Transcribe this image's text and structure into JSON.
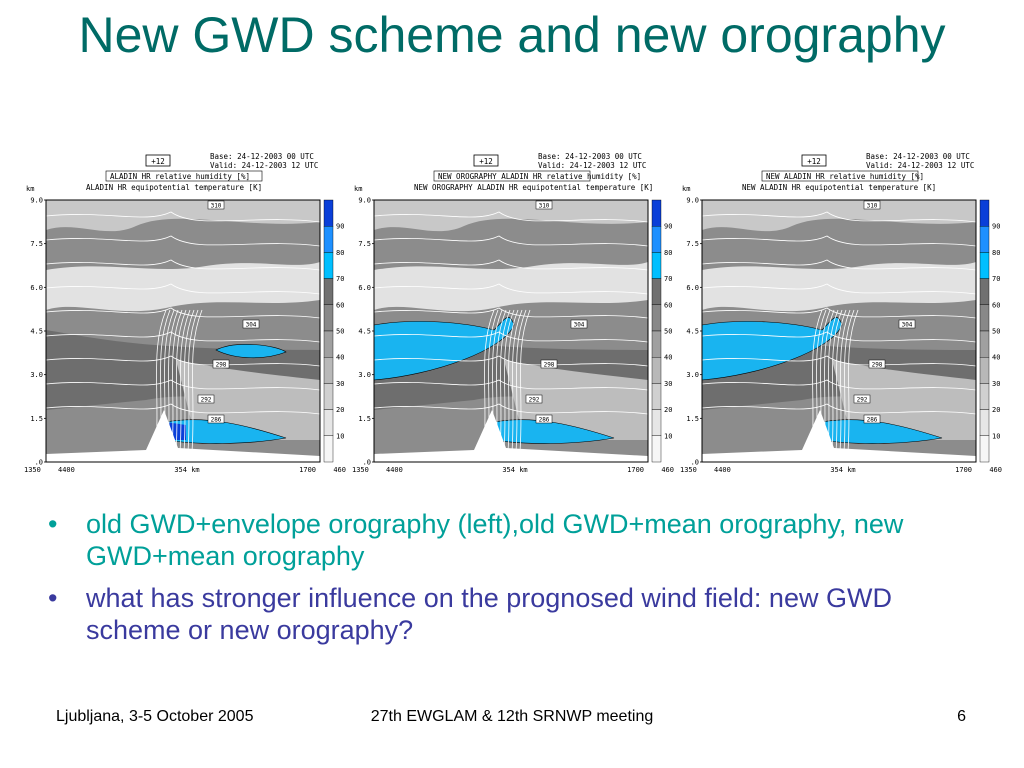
{
  "slide": {
    "title": "New GWD scheme and new orography",
    "bullets": [
      {
        "text": "old GWD+envelope orography (left),old GWD+mean orography, new GWD+mean orography",
        "color": "#00a099"
      },
      {
        "text": "what has stronger influence on the prognosed wind field: new GWD scheme or new orography?",
        "color": "#3a3a9e"
      }
    ],
    "bullet_symbol": "•",
    "footer": {
      "left": "Ljubljana, 3-5 October 2005",
      "center": "27th EWGLAM & 12th SRNWP meeting",
      "right": "6"
    }
  },
  "panels": [
    {
      "forecast": "+12",
      "base": "Base: 24-12-2003  00 UTC",
      "valid": "Valid: 24-12-2003  12 UTC",
      "line1": "ALADIN HR relative humidity [%]",
      "line2": "ALADIN HR equipotential temperature [K]",
      "contour_labels": [
        "310",
        "304",
        "298",
        "292",
        "286"
      ]
    },
    {
      "forecast": "+12",
      "base": "Base: 24-12-2003  00 UTC",
      "valid": "Valid: 24-12-2003  12 UTC",
      "line1": "NEW OROGRAPHY ALADIN HR relative humidity [%]",
      "line2": "NEW OROGRAPHY ALADIN HR equipotential temperature [K]",
      "contour_labels": [
        "310",
        "304",
        "298",
        "292",
        "286"
      ]
    },
    {
      "forecast": "+12",
      "base": "Base: 24-12-2003  00 UTC",
      "valid": "Valid: 24-12-2003  12 UTC",
      "line1": "NEW ALADIN HR relative humidity [%]",
      "line2": "NEW ALADIN HR equipotential temperature [K]",
      "contour_labels": [
        "310",
        "304",
        "298",
        "292",
        "286"
      ]
    }
  ],
  "axes": {
    "y_unit": "km",
    "y_ticks": [
      "9.0",
      "7.5",
      "6.0",
      "4.5",
      "3.0",
      "1.5",
      ".0"
    ],
    "x_left": [
      "1350",
      "4400"
    ],
    "x_center": "354 km",
    "x_right": [
      "1700",
      "460"
    ]
  },
  "colorbar": {
    "labels": [
      "90",
      "80",
      "70",
      "60",
      "50",
      "40",
      "30",
      "20",
      "10"
    ],
    "colors": [
      "#0a3fd8",
      "#1e90ff",
      "#00bfff",
      "#707070",
      "#888888",
      "#a0a0a0",
      "#b8b8b8",
      "#d0d0d0",
      "#e6e6e6",
      "#f6f6f6"
    ]
  }
}
